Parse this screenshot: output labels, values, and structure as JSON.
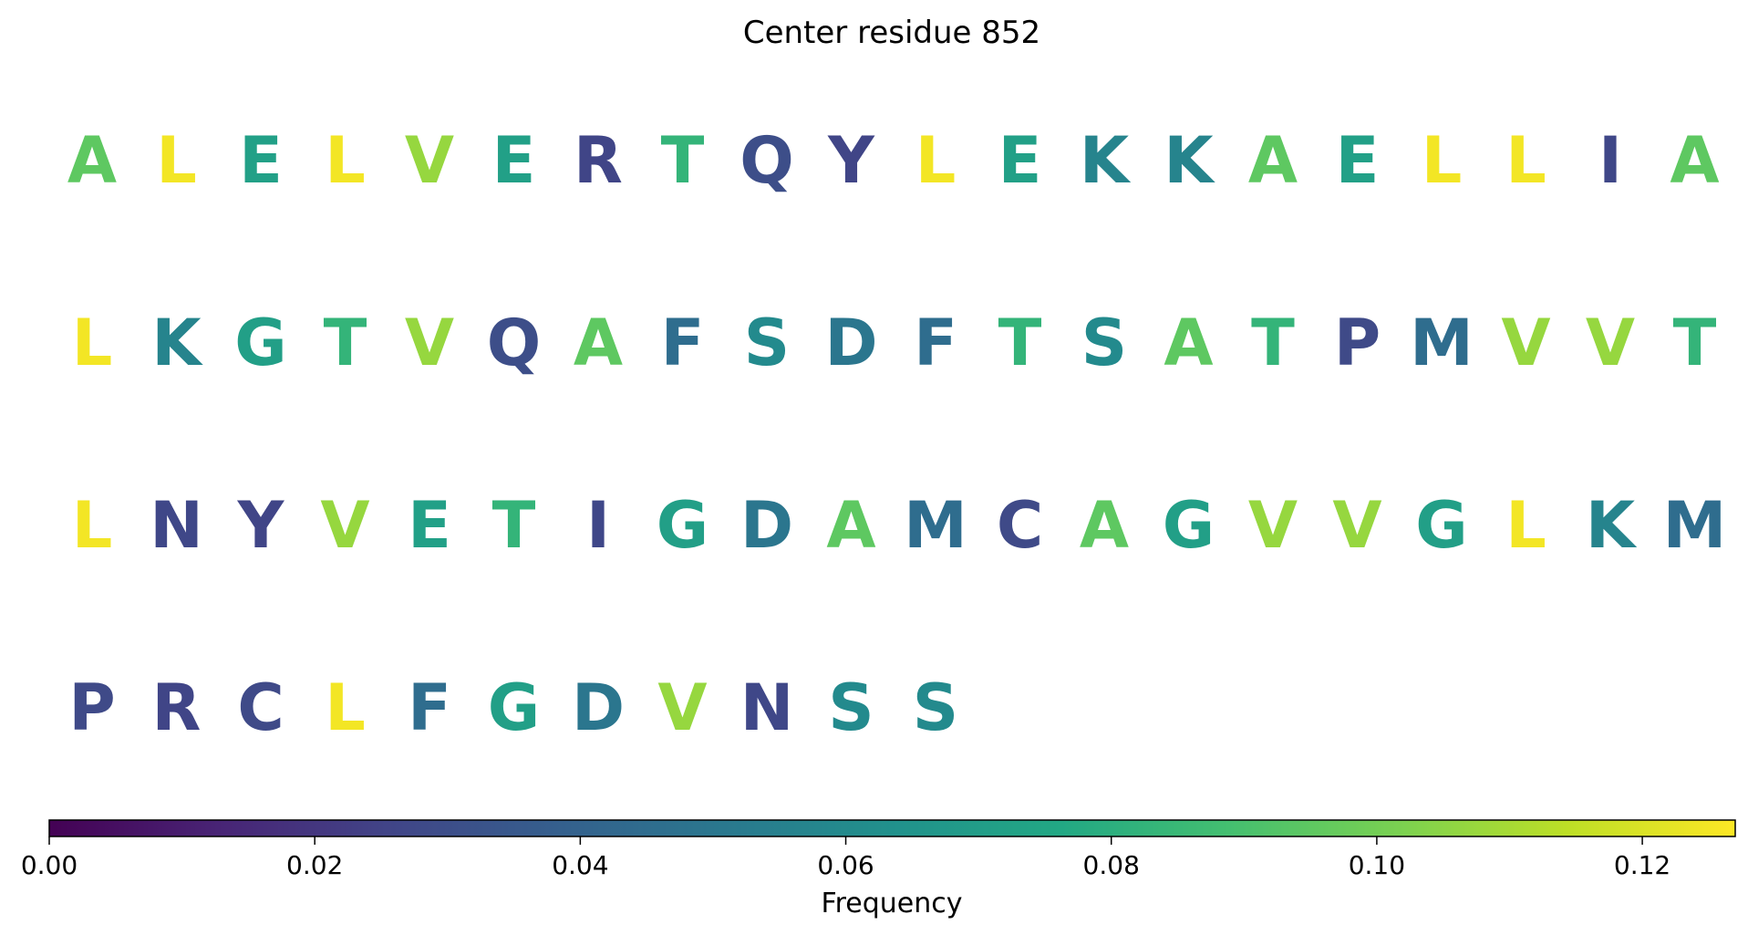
{
  "chart_data": {
    "type": "table",
    "title": "Center residue 852",
    "residues": [
      {
        "aa": "A",
        "frequency": 0.095
      },
      {
        "aa": "L",
        "frequency": 0.125
      },
      {
        "aa": "E",
        "frequency": 0.072
      },
      {
        "aa": "L",
        "frequency": 0.125
      },
      {
        "aa": "V",
        "frequency": 0.107
      },
      {
        "aa": "E",
        "frequency": 0.072
      },
      {
        "aa": "R",
        "frequency": 0.026
      },
      {
        "aa": "T",
        "frequency": 0.083
      },
      {
        "aa": "Q",
        "frequency": 0.03
      },
      {
        "aa": "Y",
        "frequency": 0.026
      },
      {
        "aa": "L",
        "frequency": 0.125
      },
      {
        "aa": "E",
        "frequency": 0.072
      },
      {
        "aa": "K",
        "frequency": 0.057
      },
      {
        "aa": "K",
        "frequency": 0.057
      },
      {
        "aa": "A",
        "frequency": 0.095
      },
      {
        "aa": "E",
        "frequency": 0.072
      },
      {
        "aa": "L",
        "frequency": 0.125
      },
      {
        "aa": "L",
        "frequency": 0.125
      },
      {
        "aa": "I",
        "frequency": 0.027
      },
      {
        "aa": "A",
        "frequency": 0.095
      },
      {
        "aa": "L",
        "frequency": 0.125
      },
      {
        "aa": "K",
        "frequency": 0.057
      },
      {
        "aa": "G",
        "frequency": 0.071
      },
      {
        "aa": "T",
        "frequency": 0.083
      },
      {
        "aa": "V",
        "frequency": 0.107
      },
      {
        "aa": "Q",
        "frequency": 0.03
      },
      {
        "aa": "A",
        "frequency": 0.095
      },
      {
        "aa": "F",
        "frequency": 0.045
      },
      {
        "aa": "S",
        "frequency": 0.06
      },
      {
        "aa": "D",
        "frequency": 0.05
      },
      {
        "aa": "F",
        "frequency": 0.045
      },
      {
        "aa": "T",
        "frequency": 0.083
      },
      {
        "aa": "S",
        "frequency": 0.06
      },
      {
        "aa": "A",
        "frequency": 0.095
      },
      {
        "aa": "T",
        "frequency": 0.083
      },
      {
        "aa": "P",
        "frequency": 0.028
      },
      {
        "aa": "M",
        "frequency": 0.045
      },
      {
        "aa": "V",
        "frequency": 0.107
      },
      {
        "aa": "V",
        "frequency": 0.107
      },
      {
        "aa": "T",
        "frequency": 0.083
      },
      {
        "aa": "L",
        "frequency": 0.125
      },
      {
        "aa": "N",
        "frequency": 0.027
      },
      {
        "aa": "Y",
        "frequency": 0.026
      },
      {
        "aa": "V",
        "frequency": 0.107
      },
      {
        "aa": "E",
        "frequency": 0.072
      },
      {
        "aa": "T",
        "frequency": 0.083
      },
      {
        "aa": "I",
        "frequency": 0.027
      },
      {
        "aa": "G",
        "frequency": 0.071
      },
      {
        "aa": "D",
        "frequency": 0.05
      },
      {
        "aa": "A",
        "frequency": 0.095
      },
      {
        "aa": "M",
        "frequency": 0.045
      },
      {
        "aa": "C",
        "frequency": 0.028
      },
      {
        "aa": "A",
        "frequency": 0.095
      },
      {
        "aa": "G",
        "frequency": 0.071
      },
      {
        "aa": "V",
        "frequency": 0.107
      },
      {
        "aa": "V",
        "frequency": 0.107
      },
      {
        "aa": "G",
        "frequency": 0.071
      },
      {
        "aa": "L",
        "frequency": 0.125
      },
      {
        "aa": "K",
        "frequency": 0.057
      },
      {
        "aa": "M",
        "frequency": 0.045
      },
      {
        "aa": "P",
        "frequency": 0.028
      },
      {
        "aa": "R",
        "frequency": 0.026
      },
      {
        "aa": "C",
        "frequency": 0.028
      },
      {
        "aa": "L",
        "frequency": 0.125
      },
      {
        "aa": "F",
        "frequency": 0.045
      },
      {
        "aa": "G",
        "frequency": 0.071
      },
      {
        "aa": "D",
        "frequency": 0.05
      },
      {
        "aa": "V",
        "frequency": 0.107
      },
      {
        "aa": "N",
        "frequency": 0.027
      },
      {
        "aa": "S",
        "frequency": 0.06
      },
      {
        "aa": "S",
        "frequency": 0.06
      }
    ],
    "colorbar": {
      "label": "Frequency",
      "range": [
        0,
        0.127
      ],
      "ticks": [
        0.0,
        0.02,
        0.04,
        0.06,
        0.08,
        0.1,
        0.12
      ],
      "tick_labels": [
        "0.00",
        "0.02",
        "0.04",
        "0.06",
        "0.08",
        "0.10",
        "0.12"
      ],
      "colormap": "viridis"
    }
  }
}
